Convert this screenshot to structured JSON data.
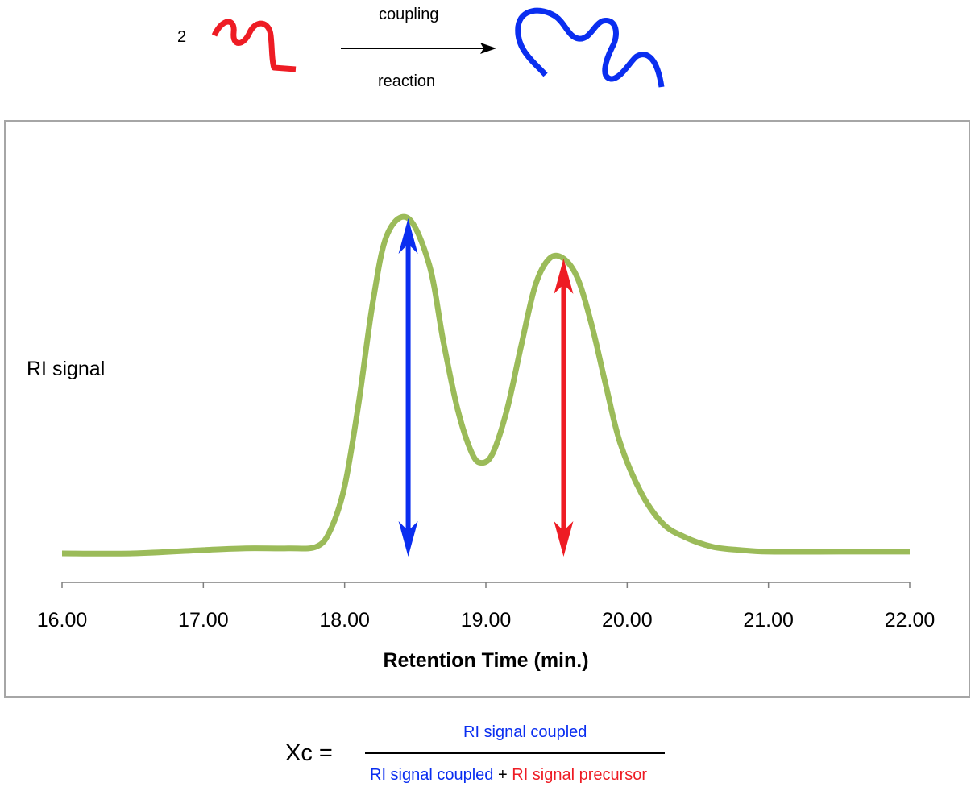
{
  "scheme": {
    "coefficient": "2",
    "arrow_top": "coupling",
    "arrow_bottom": "reaction",
    "precursor_color": "#ee1c24",
    "product_color": "#0a2ef0"
  },
  "chart_data": {
    "type": "line",
    "title": "",
    "xlabel": "Retention Time (min.)",
    "ylabel": "RI signal",
    "xlim": [
      16.0,
      22.0
    ],
    "x_ticks": [
      "16.00",
      "17.00",
      "18.00",
      "19.00",
      "20.00",
      "21.00",
      "22.00"
    ],
    "line_color": "#9bbb59",
    "series": [
      {
        "x": [
          16.0,
          16.5,
          17.0,
          17.3,
          17.6,
          17.8,
          17.9,
          18.0,
          18.1,
          18.2,
          18.3,
          18.45,
          18.6,
          18.7,
          18.8,
          18.9,
          18.97,
          19.05,
          19.15,
          19.25,
          19.35,
          19.45,
          19.55,
          19.65,
          19.75,
          19.85,
          19.95,
          20.1,
          20.25,
          20.4,
          20.6,
          20.8,
          21.0,
          21.5,
          22.0
        ],
        "y": [
          0.0,
          0.0,
          0.01,
          0.015,
          0.015,
          0.02,
          0.07,
          0.2,
          0.45,
          0.75,
          0.95,
          1.0,
          0.86,
          0.63,
          0.43,
          0.3,
          0.27,
          0.3,
          0.43,
          0.62,
          0.8,
          0.88,
          0.88,
          0.82,
          0.68,
          0.5,
          0.33,
          0.18,
          0.09,
          0.05,
          0.02,
          0.01,
          0.005,
          0.005,
          0.005
        ]
      }
    ],
    "annotations": [
      {
        "x": 18.45,
        "label": "coupled",
        "color": "#0a2ef0"
      },
      {
        "x": 19.55,
        "label": "precursor",
        "color": "#ee1c24"
      }
    ]
  },
  "formula": {
    "lhs": "Xc =",
    "numerator": "RI signal coupled",
    "denominator_part1": "RI signal coupled",
    "plus": "+",
    "denominator_part2": "RI signal precursor",
    "blue": "#0a2ef0",
    "red": "#ee1c24"
  }
}
